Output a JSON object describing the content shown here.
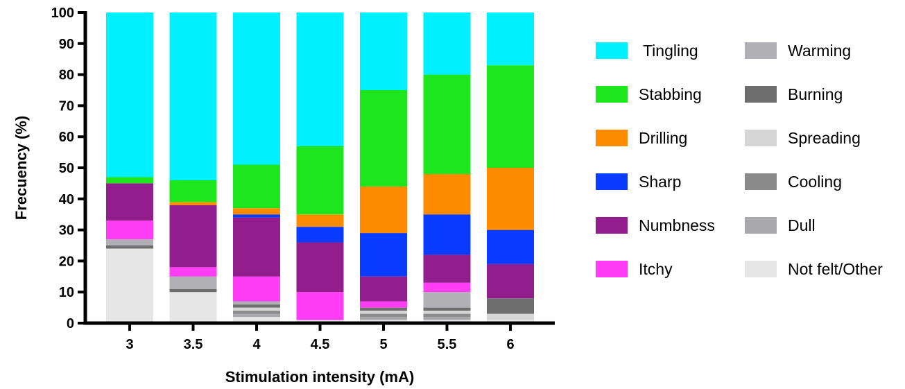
{
  "chart_data": {
    "type": "bar",
    "stacked": true,
    "xlabel": "Stimulation intensity (mA)",
    "ylabel": "Frecuency (%)",
    "ylim": [
      0,
      100
    ],
    "yticks": [
      0,
      10,
      20,
      30,
      40,
      50,
      60,
      70,
      80,
      90,
      100
    ],
    "categories": [
      "3",
      "3.5",
      "4",
      "4.5",
      "5",
      "5.5",
      "6"
    ],
    "grid": false,
    "legend_position": "right",
    "series": [
      {
        "name": "Not felt/Other",
        "color": "#e6e6e6",
        "values": [
          24,
          10,
          2,
          1,
          1,
          1,
          1
        ]
      },
      {
        "name": "Dull",
        "color": "#a8a8ad",
        "values": [
          0,
          0,
          1,
          0,
          1,
          1,
          0
        ]
      },
      {
        "name": "Cooling",
        "color": "#8a8a8a",
        "values": [
          0,
          0,
          1,
          0,
          1,
          1,
          0
        ]
      },
      {
        "name": "Spreading",
        "color": "#d6d6d6",
        "values": [
          0,
          0,
          1,
          0,
          1,
          1,
          2
        ]
      },
      {
        "name": "Burning",
        "color": "#6e6e6e",
        "values": [
          1,
          1,
          1,
          0,
          1,
          1,
          5
        ]
      },
      {
        "name": "Warming",
        "color": "#b0b0b5",
        "values": [
          2,
          4,
          1,
          0,
          0,
          5,
          0
        ]
      },
      {
        "name": "Itchy",
        "color": "#ff3df5",
        "values": [
          6,
          3,
          8,
          9,
          2,
          3,
          0
        ]
      },
      {
        "name": "Numbness",
        "color": "#911e8c",
        "values": [
          12,
          20,
          19,
          16,
          8,
          9,
          11
        ]
      },
      {
        "name": "Sharp",
        "color": "#0a3cff",
        "values": [
          0,
          0,
          1,
          5,
          14,
          13,
          11
        ]
      },
      {
        "name": "Drilling",
        "color": "#ff8c00",
        "values": [
          0,
          1,
          2,
          4,
          15,
          13,
          20
        ]
      },
      {
        "name": "Stabbing",
        "color": "#1ee61e",
        "values": [
          2,
          7,
          14,
          22,
          31,
          32,
          33
        ]
      },
      {
        "name": "Tingling",
        "color": "#00f0ff",
        "values": [
          53,
          54,
          49,
          43,
          25,
          20,
          17
        ]
      }
    ],
    "legend": [
      [
        {
          "name": " Tingling",
          "color": "#00f0ff"
        },
        {
          "name": "Stabbing",
          "color": "#1ee61e"
        },
        {
          "name": "Drilling",
          "color": "#ff8c00"
        },
        {
          "name": "Sharp",
          "color": "#0a3cff"
        },
        {
          "name": "Numbness",
          "color": "#911e8c"
        },
        {
          "name": "Itchy",
          "color": "#ff3df5"
        }
      ],
      [
        {
          "name": "Warming",
          "color": "#b0b0b5"
        },
        {
          "name": "Burning",
          "color": "#6e6e6e"
        },
        {
          "name": "Spreading",
          "color": "#d6d6d6"
        },
        {
          "name": "Cooling",
          "color": "#8a8a8a"
        },
        {
          "name": "Dull",
          "color": "#a8a8ad"
        },
        {
          "name": "Not felt/Other",
          "color": "#e6e6e6"
        }
      ]
    ]
  }
}
